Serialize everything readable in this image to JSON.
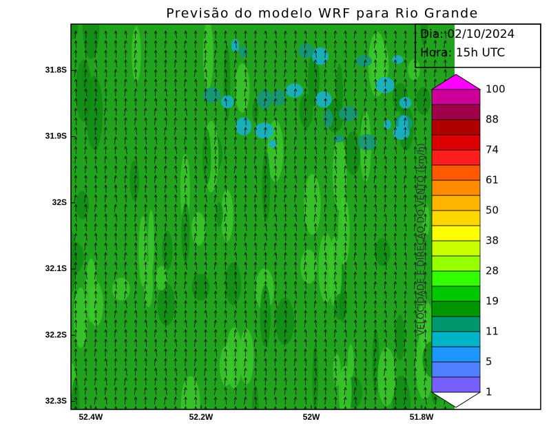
{
  "title": "Previsão do modelo WRF para Rio Grande",
  "info": {
    "date": "Dia: 02/10/2024",
    "time": "Hora: 15h UTC"
  },
  "map": {
    "xlim": [
      -52.436,
      -51.584
    ],
    "ylim": [
      -32.312,
      -31.73
    ],
    "xticks": [
      {
        "value": -52.4,
        "label": "52.4W"
      },
      {
        "value": -52.2,
        "label": "52.2W"
      },
      {
        "value": -52.0,
        "label": "52W"
      },
      {
        "value": -51.8,
        "label": "51.8W"
      }
    ],
    "yticks": [
      {
        "value": -31.8,
        "label": "31.8S"
      },
      {
        "value": -31.9,
        "label": "31.9S"
      },
      {
        "value": -32.0,
        "label": "32S"
      },
      {
        "value": -32.1,
        "label": "32.1S"
      },
      {
        "value": -32.2,
        "label": "32.2S"
      },
      {
        "value": -32.3,
        "label": "32.3S"
      }
    ]
  },
  "colorbar": {
    "label": "VELOCIDADE E DIREÇÃO DO VENTO (km/h)",
    "ticks": [
      100,
      88,
      74,
      61,
      50,
      38,
      28,
      19,
      11,
      5,
      1
    ],
    "colors": [
      "#cc0099",
      "#a0004a",
      "#b00000",
      "#dd0000",
      "#ff1e1e",
      "#ff5a00",
      "#ff8c00",
      "#ffb400",
      "#ffd700",
      "#ffff00",
      "#c8ff00",
      "#96ff00",
      "#32ff00",
      "#00c800",
      "#009600",
      "#00966e",
      "#00b4c8",
      "#1e96ff",
      "#5080ff",
      "#7860ff"
    ]
  }
}
